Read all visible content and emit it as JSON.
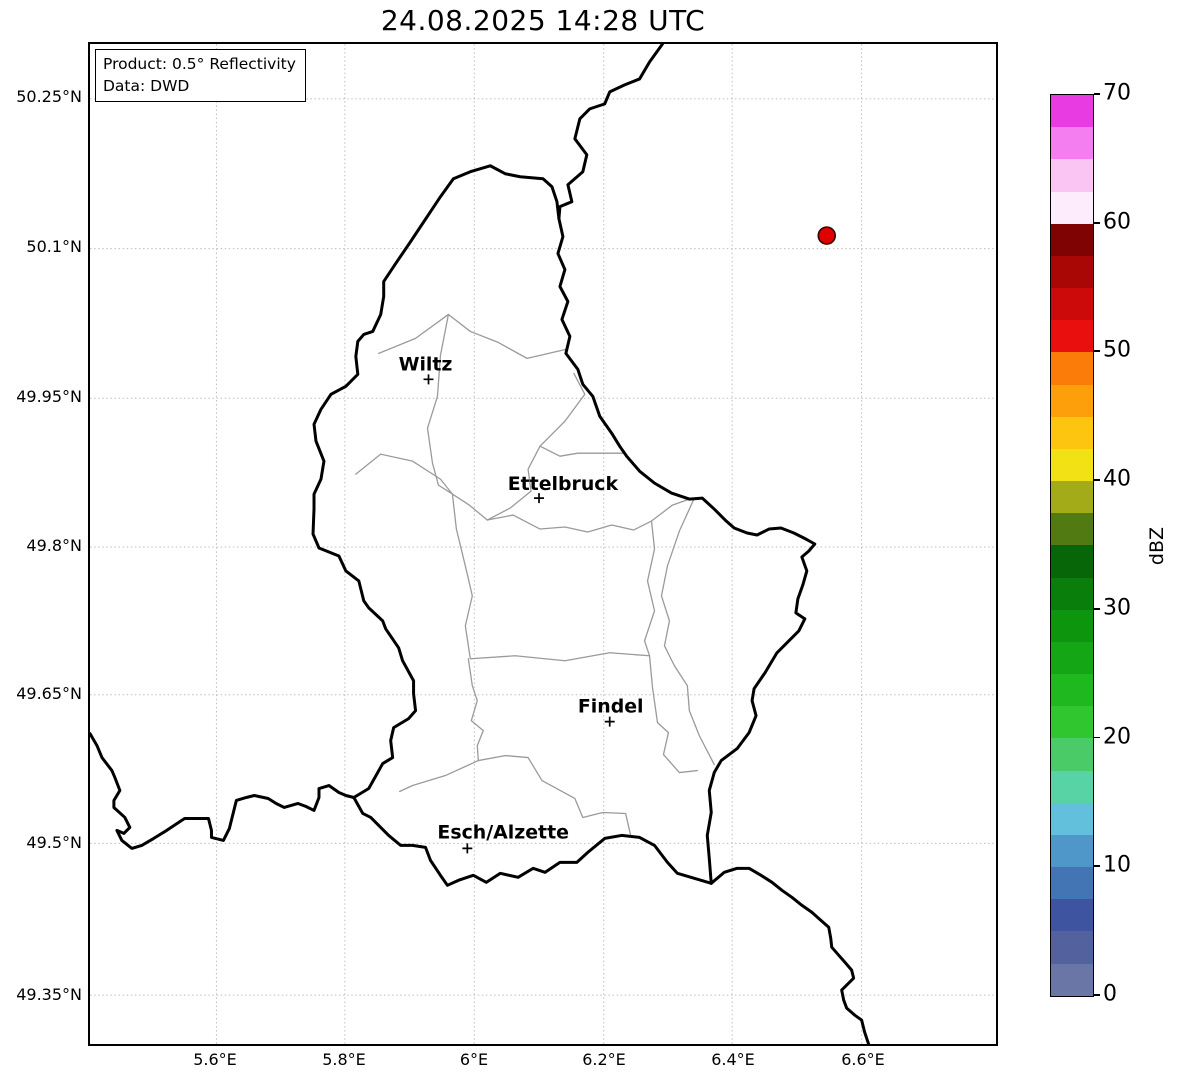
{
  "title": "24.08.2025 14:28 UTC",
  "info_box": {
    "line1": "Product: 0.5° Reflectivity",
    "line2": "Data: DWD"
  },
  "axes": {
    "lat_ticks": [
      "50.25°N",
      "50.1°N",
      "49.95°N",
      "49.8°N",
      "49.65°N",
      "49.5°N",
      "49.35°N"
    ],
    "lon_ticks": [
      "5.6°E",
      "5.8°E",
      "6°E",
      "6.2°E",
      "6.4°E",
      "6.6°E"
    ]
  },
  "map": {
    "cities": [
      {
        "name": "Wiltz"
      },
      {
        "name": "Ettelbruck"
      },
      {
        "name": "Findel"
      },
      {
        "name": "Esch/Alzette"
      }
    ],
    "radar_point": {
      "color": "#e00000",
      "edge_color": "#3a0000"
    },
    "country_border_color": "#000000",
    "district_border_color": "#9a9a9a"
  },
  "colorbar": {
    "label": "dBZ",
    "min": 0,
    "max": 70,
    "ticks": [
      {
        "value": 0,
        "label": "0"
      },
      {
        "value": 10,
        "label": "10"
      },
      {
        "value": 20,
        "label": "20"
      },
      {
        "value": 30,
        "label": "30"
      },
      {
        "value": 40,
        "label": "40"
      },
      {
        "value": 50,
        "label": "50"
      },
      {
        "value": 60,
        "label": "60"
      },
      {
        "value": 70,
        "label": "70"
      }
    ],
    "segments_bottom_to_top": [
      "#6a76a5",
      "#53629f",
      "#3e54a0",
      "#4374b4",
      "#4f97c9",
      "#63c0dd",
      "#57d3a6",
      "#4bcb67",
      "#2fc62f",
      "#1fb81f",
      "#14a614",
      "#0d950d",
      "#0a7e0a",
      "#076607",
      "#527a12",
      "#a3ab18",
      "#f2e115",
      "#fdc410",
      "#fc9f0b",
      "#fb7c09",
      "#ea0f0f",
      "#cc0a0a",
      "#a90606",
      "#7f0303",
      "#fdecfb",
      "#fac4f3",
      "#f47df0",
      "#e93be2"
    ]
  }
}
